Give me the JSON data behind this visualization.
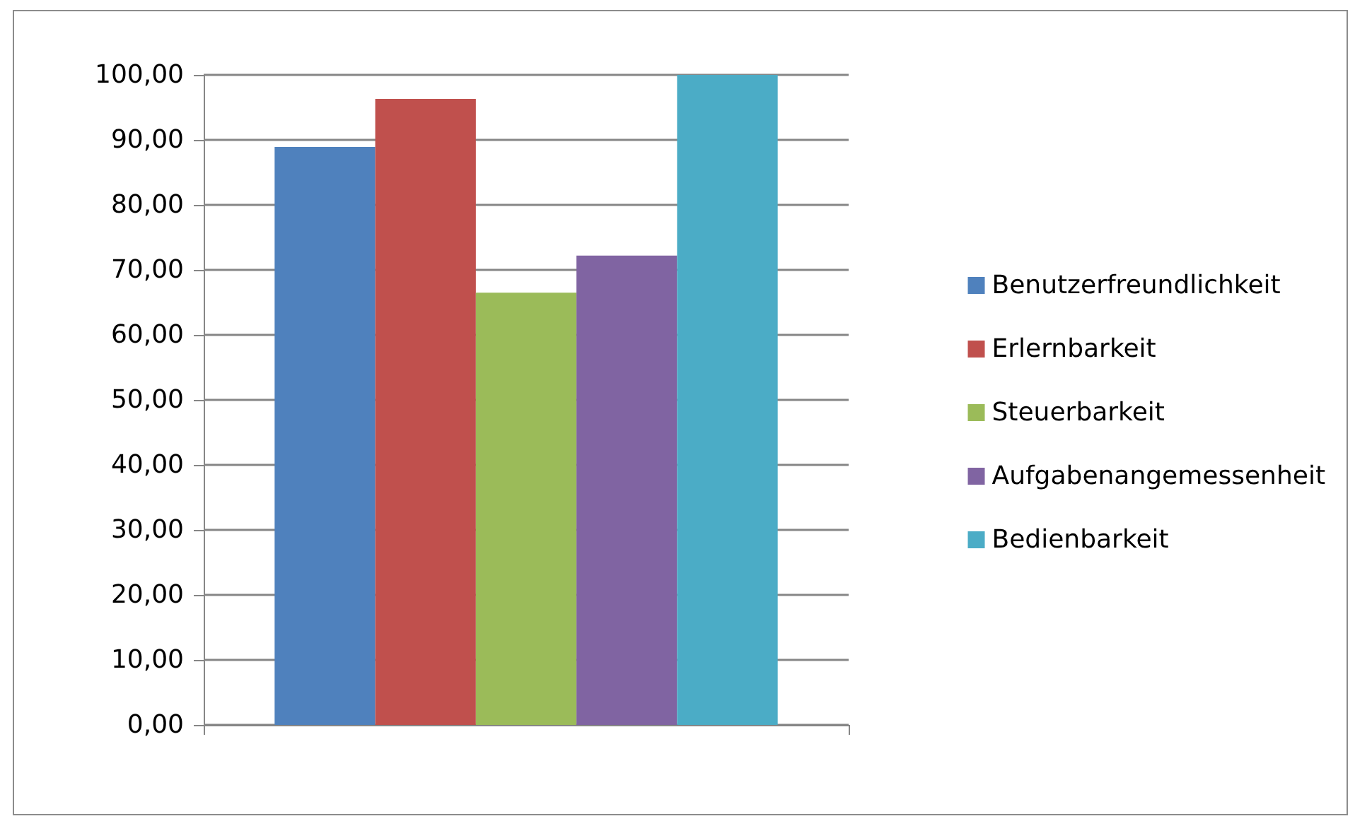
{
  "chart_data": {
    "type": "bar",
    "categories": [
      null
    ],
    "series": [
      {
        "name": "Benutzerfreundlichkeit",
        "color": "#4f81bd",
        "values": [
          88.9
        ]
      },
      {
        "name": "Erlernbarkeit",
        "color": "#c0504d",
        "values": [
          96.3
        ]
      },
      {
        "name": "Steuerbarkeit",
        "color": "#9bbb59",
        "values": [
          66.5
        ]
      },
      {
        "name": "Aufgabenangemessenheit",
        "color": "#8064a2",
        "values": [
          72.2
        ]
      },
      {
        "name": "Bedienbarkeit",
        "color": "#4bacc6",
        "values": [
          100
        ]
      }
    ],
    "ylim": [
      0,
      100
    ],
    "yticks": [
      {
        "value": 0,
        "label": "0,00"
      },
      {
        "value": 10,
        "label": "10,00"
      },
      {
        "value": 20,
        "label": "20,00"
      },
      {
        "value": 30,
        "label": "30,00"
      },
      {
        "value": 40,
        "label": "40,00"
      },
      {
        "value": 50,
        "label": "50,00"
      },
      {
        "value": 60,
        "label": "60,00"
      },
      {
        "value": 70,
        "label": "70,00"
      },
      {
        "value": 80,
        "label": "80,00"
      },
      {
        "value": 90,
        "label": "90,00"
      },
      {
        "value": 100,
        "label": "100,00"
      }
    ],
    "grid": "y",
    "legend": "right"
  }
}
